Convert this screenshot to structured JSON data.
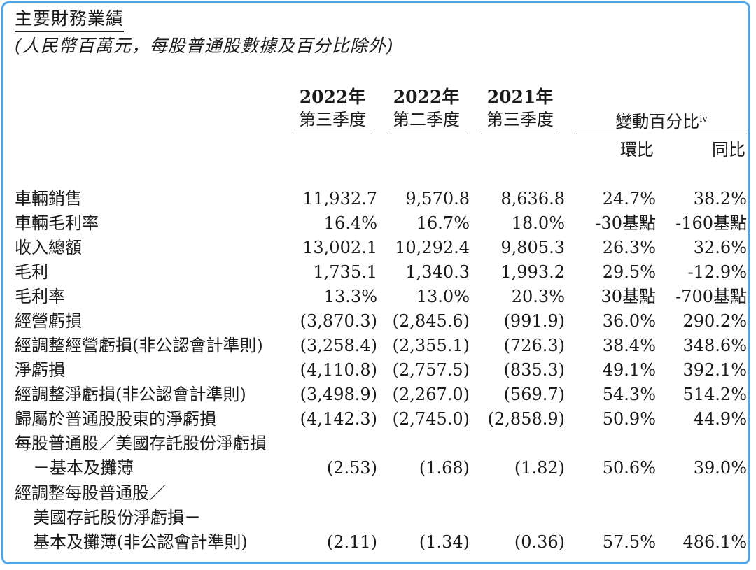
{
  "title": "主要財務業績",
  "subtitle": "(人民幣百萬元，每股普通股數據及百分比除外)",
  "columns": [
    {
      "year": "2022年",
      "quarter": "第三季度"
    },
    {
      "year": "2022年",
      "quarter": "第二季度"
    },
    {
      "year": "2021年",
      "quarter": "第三季度"
    }
  ],
  "change_header": "變動百分比",
  "change_sup": "iv",
  "change_sub": [
    "環比",
    "同比"
  ],
  "rows": [
    {
      "label": "車輛銷售",
      "values": [
        "11,932.7",
        "9,570.8",
        "8,636.8",
        "24.7%",
        "38.2%"
      ]
    },
    {
      "label": "車輛毛利率",
      "values": [
        "16.4%",
        "16.7%",
        "18.0%",
        "-30基點",
        "-160基點"
      ]
    },
    {
      "label": "收入總額",
      "values": [
        "13,002.1",
        "10,292.4",
        "9,805.3",
        "26.3%",
        "32.6%"
      ]
    },
    {
      "label": "毛利",
      "values": [
        "1,735.1",
        "1,340.3",
        "1,993.2",
        "29.5%",
        "-12.9%"
      ]
    },
    {
      "label": "毛利率",
      "values": [
        "13.3%",
        "13.0%",
        "20.3%",
        "30基點",
        "-700基點"
      ]
    },
    {
      "label": "經營虧損",
      "values": [
        "(3,870.3)",
        "(2,845.6)",
        "(991.9)",
        "36.0%",
        "290.2%"
      ]
    },
    {
      "label": "經調整經營虧損(非公認會計準則)",
      "values": [
        "(3,258.4)",
        "(2,355.1)",
        "(726.3)",
        "38.4%",
        "348.6%"
      ]
    },
    {
      "label": "淨虧損",
      "values": [
        "(4,110.8)",
        "(2,757.5)",
        "(835.3)",
        "49.1%",
        "392.1%"
      ]
    },
    {
      "label": "經調整淨虧損(非公認會計準則)",
      "values": [
        "(3,498.9)",
        "(2,267.0)",
        "(569.7)",
        "54.3%",
        "514.2%"
      ]
    },
    {
      "label": "歸屬於普通股股東的淨虧損",
      "values": [
        "(4,142.3)",
        "(2,745.0)",
        "(2,858.9)",
        "50.9%",
        "44.9%"
      ]
    }
  ],
  "eps_label_1": "每股普通股／美國存託股份淨虧損",
  "eps_label_2": "－基本及攤薄",
  "eps_values": [
    "(2.53)",
    "(1.68)",
    "(1.82)",
    "50.6%",
    "39.0%"
  ],
  "adj_eps_label_1": "經調整每股普通股／",
  "adj_eps_label_2": "美國存託股份淨虧損－",
  "adj_eps_label_3": "基本及攤薄(非公認會計準則)",
  "adj_eps_values": [
    "(2.11)",
    "(1.34)",
    "(0.36)",
    "57.5%",
    "486.1%"
  ]
}
